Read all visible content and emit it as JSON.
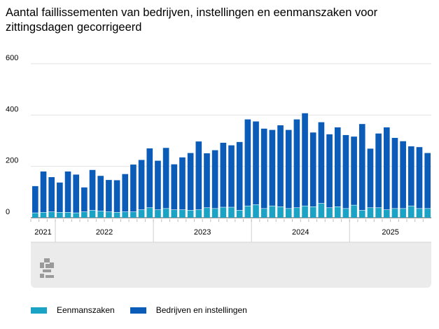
{
  "title": "Aantal faillissementen van bedrijven, instellingen en eenmanszaken voor zittingsdagen gecorrigeerd",
  "colors": {
    "eenmanszaken": "#1BA3C6",
    "bedrijven": "#0B5CB8",
    "axis_band": "#ebebeb"
  },
  "logo_name": "cbs-logo-icon",
  "chart_data": {
    "type": "bar",
    "stacked": true,
    "title": "Aantal faillissementen van bedrijven, instellingen en eenmanszaken voor zittingsdagen gecorrigeerd",
    "xlabel": "",
    "ylabel": "",
    "ylim": [
      0,
      600
    ],
    "yticks": [
      0,
      200,
      400,
      600
    ],
    "grid": true,
    "legend_position": "bottom-left",
    "year_groups": [
      {
        "label": "2021",
        "count": 3
      },
      {
        "label": "2022",
        "count": 12
      },
      {
        "label": "2023",
        "count": 12
      },
      {
        "label": "2024",
        "count": 12
      },
      {
        "label": "2025",
        "count": 10
      }
    ],
    "series": [
      {
        "name": "Eenmanszaken",
        "values": [
          18,
          20,
          22,
          20,
          20,
          18,
          22,
          28,
          25,
          22,
          20,
          22,
          22,
          30,
          38,
          30,
          35,
          30,
          30,
          28,
          30,
          38,
          35,
          40,
          40,
          28,
          45,
          50,
          35,
          45,
          42,
          35,
          38,
          45,
          42,
          55,
          38,
          42,
          35,
          48,
          28,
          38,
          38,
          30,
          35,
          35,
          45,
          35,
          35
        ]
      },
      {
        "name": "Bedrijven en instellingen",
        "values": [
          105,
          160,
          136,
          117,
          160,
          150,
          96,
          158,
          138,
          125,
          126,
          148,
          185,
          195,
          232,
          192,
          237,
          178,
          205,
          224,
          267,
          213,
          228,
          252,
          242,
          267,
          338,
          325,
          312,
          297,
          318,
          307,
          345,
          362,
          290,
          317,
          287,
          310,
          287,
          268,
          337,
          231,
          290,
          322,
          276,
          263,
          233,
          240,
          217
        ]
      }
    ]
  },
  "legend": {
    "items": [
      {
        "label": "Eenmanszaken"
      },
      {
        "label": "Bedrijven en instellingen"
      }
    ]
  }
}
